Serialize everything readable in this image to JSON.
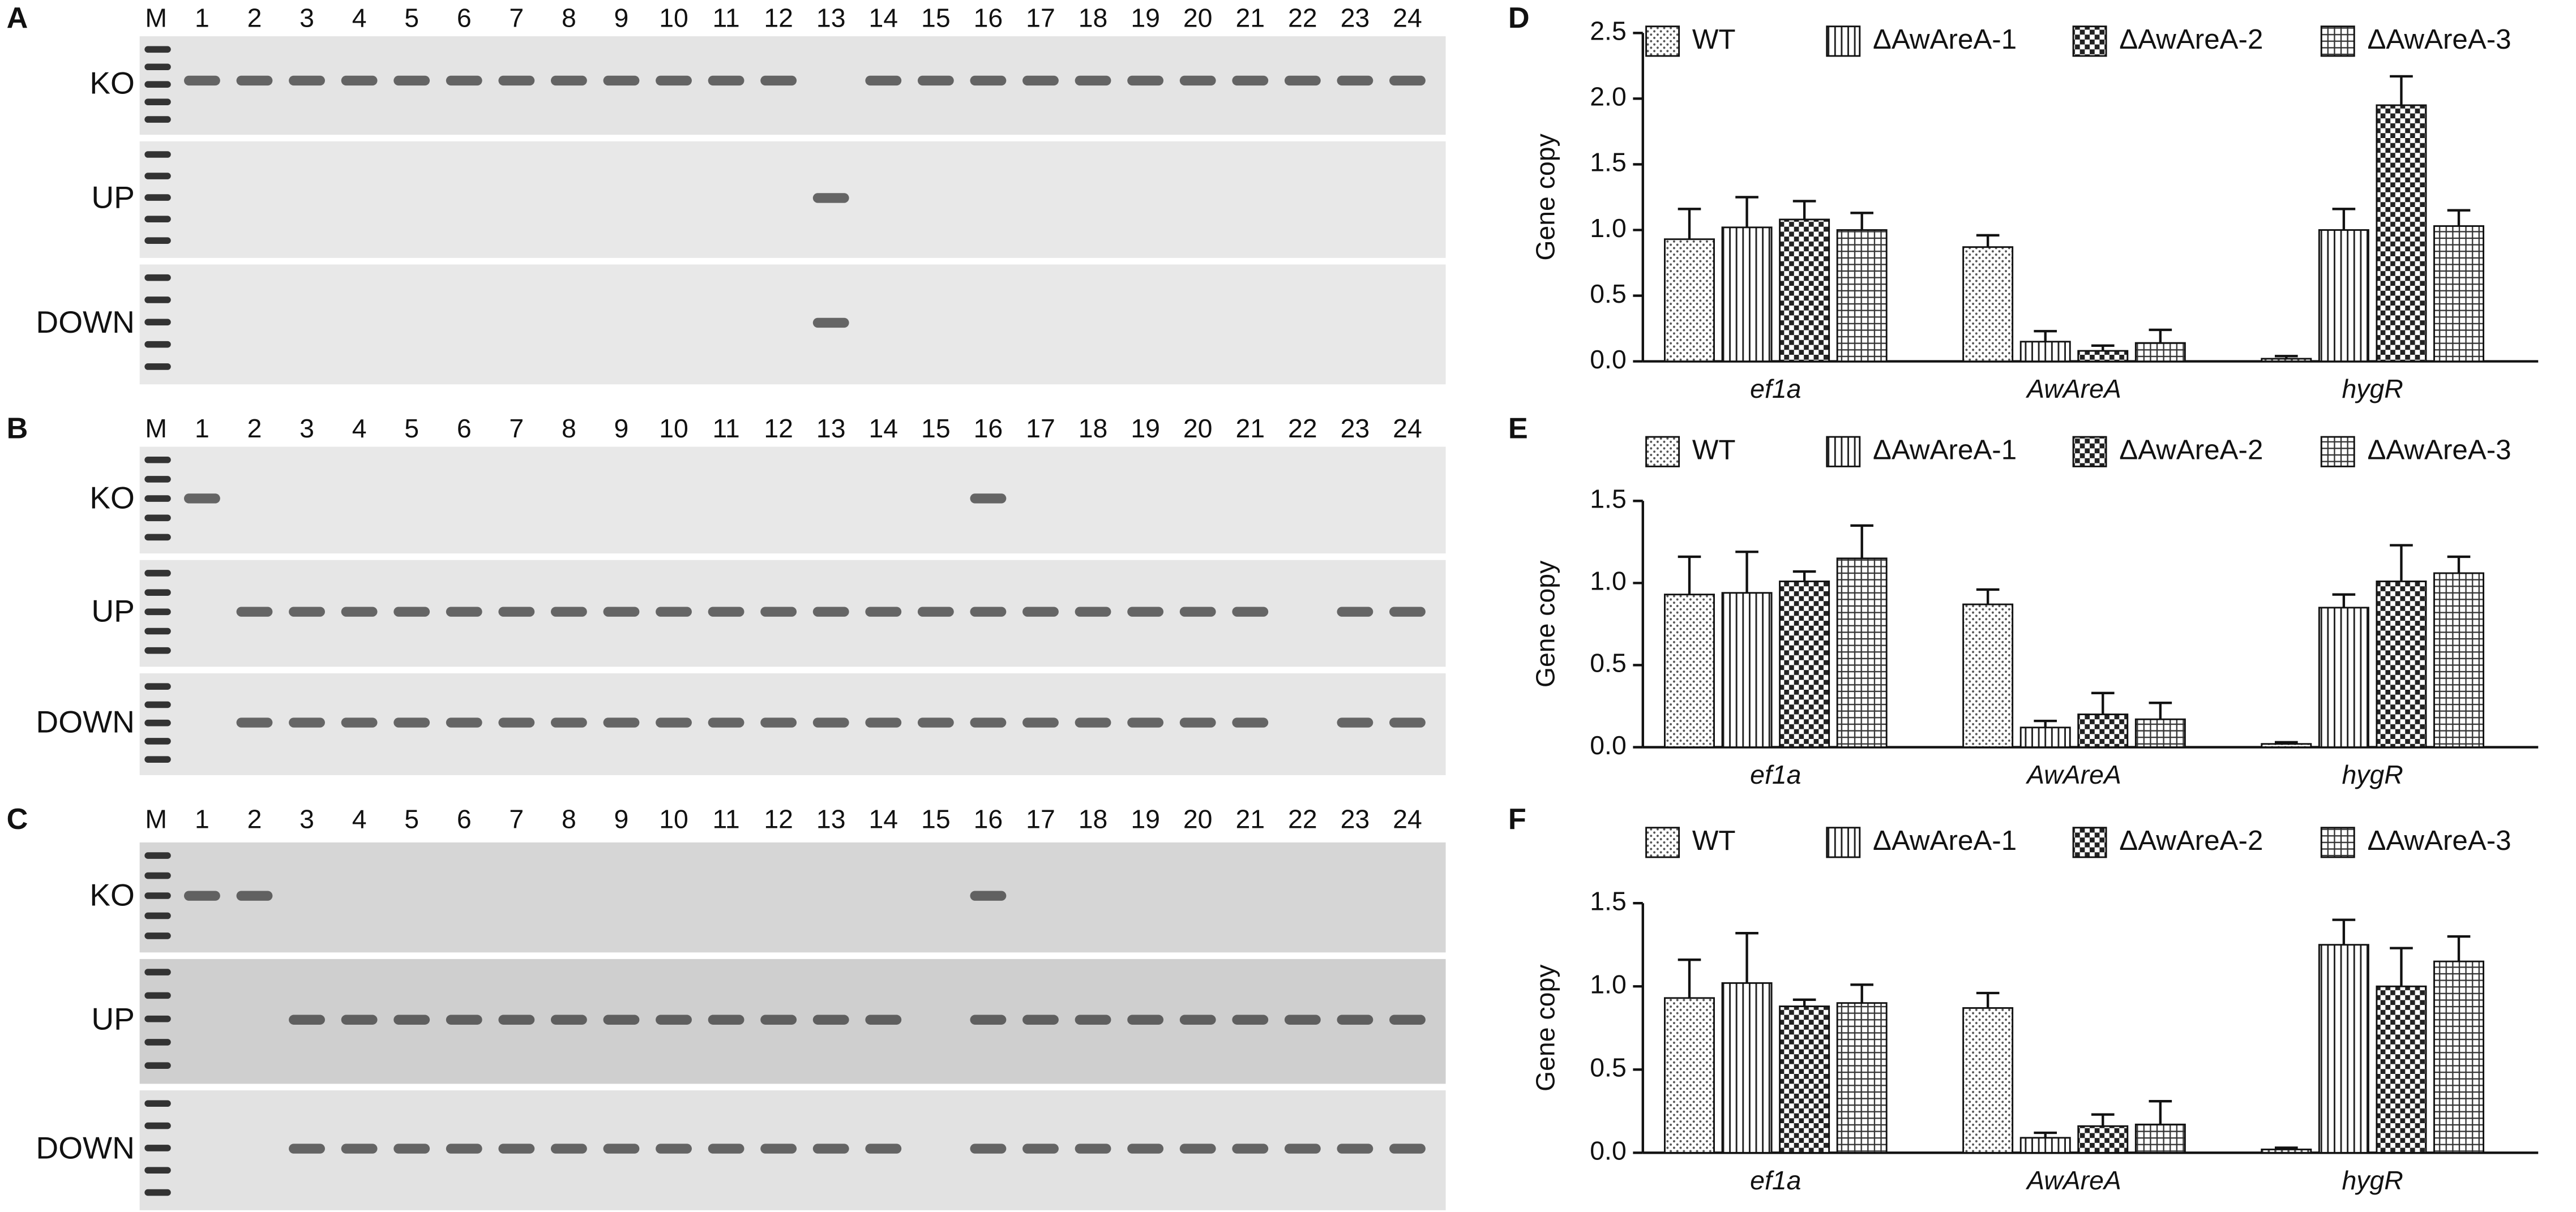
{
  "gels": [
    {
      "panel": "A",
      "lanes": [
        "M",
        "1",
        "2",
        "3",
        "4",
        "5",
        "6",
        "7",
        "8",
        "9",
        "10",
        "11",
        "12",
        "13",
        "14",
        "15",
        "16",
        "17",
        "18",
        "19",
        "20",
        "21",
        "22",
        "23",
        "24"
      ],
      "rows": [
        "KO",
        "UP",
        "DOWN"
      ]
    },
    {
      "panel": "B",
      "lanes": [
        "M",
        "1",
        "2",
        "3",
        "4",
        "5",
        "6",
        "7",
        "8",
        "9",
        "10",
        "11",
        "12",
        "13",
        "14",
        "15",
        "16",
        "17",
        "18",
        "19",
        "20",
        "21",
        "22",
        "23",
        "24"
      ],
      "rows": [
        "KO",
        "UP",
        "DOWN"
      ]
    },
    {
      "panel": "C",
      "lanes": [
        "M",
        "1",
        "2",
        "3",
        "4",
        "5",
        "6",
        "7",
        "8",
        "9",
        "10",
        "11",
        "12",
        "13",
        "14",
        "15",
        "16",
        "17",
        "18",
        "19",
        "20",
        "21",
        "22",
        "23",
        "24"
      ],
      "rows": [
        "KO",
        "UP",
        "DOWN"
      ]
    }
  ],
  "chart_data": [
    {
      "type": "bar",
      "panel": "D",
      "y_label": "Gene copy",
      "categories": [
        "ef1a",
        "AwAreA",
        "hygR"
      ],
      "ylim": [
        0,
        2.5
      ],
      "yticks": [
        {
          "value": 0,
          "label": "0.0"
        },
        0.5,
        {
          "value": 1,
          "label": "1.0"
        },
        1.5,
        {
          "value": 2,
          "label": "2.0"
        },
        2.5
      ],
      "series": [
        {
          "name": "WT",
          "values": [
            0.93,
            0.87,
            0.02
          ],
          "errors": [
            0.23,
            0.09,
            0.02
          ]
        },
        {
          "name": "ΔAwAreA-1",
          "values": [
            1.02,
            0.15,
            1.0
          ],
          "errors": [
            0.23,
            0.08,
            0.16
          ]
        },
        {
          "name": "ΔAwAreA-2",
          "values": [
            1.08,
            0.08,
            1.95
          ],
          "errors": [
            0.14,
            0.04,
            0.22
          ]
        },
        {
          "name": "ΔAwAreA-3",
          "values": [
            1.0,
            0.14,
            1.03
          ],
          "errors": [
            0.13,
            0.1,
            0.12
          ]
        }
      ]
    },
    {
      "type": "bar",
      "panel": "E",
      "y_label": "Gene copy",
      "categories": [
        "ef1a",
        "AwAreA",
        "hygR"
      ],
      "ylim": [
        0,
        1.5
      ],
      "yticks": [
        {
          "value": 0,
          "label": "0.0"
        },
        0.5,
        {
          "value": 1,
          "label": "1.0"
        },
        1.5
      ],
      "series": [
        {
          "name": "WT",
          "values": [
            0.93,
            0.87,
            0.02
          ],
          "errors": [
            0.23,
            0.09,
            0.01
          ]
        },
        {
          "name": "ΔAwAreA-1",
          "values": [
            0.94,
            0.12,
            0.85
          ],
          "errors": [
            0.25,
            0.04,
            0.08
          ]
        },
        {
          "name": "ΔAwAreA-2",
          "values": [
            1.01,
            0.2,
            1.01
          ],
          "errors": [
            0.06,
            0.13,
            0.22
          ]
        },
        {
          "name": "ΔAwAreA-3",
          "values": [
            1.15,
            0.17,
            1.06
          ],
          "errors": [
            0.2,
            0.1,
            0.1
          ]
        }
      ]
    },
    {
      "type": "bar",
      "panel": "F",
      "y_label": "Gene copy",
      "categories": [
        "ef1a",
        "AwAreA",
        "hygR"
      ],
      "ylim": [
        0,
        1.5
      ],
      "yticks": [
        {
          "value": 0,
          "label": "0.0"
        },
        0.5,
        {
          "value": 1,
          "label": "1.0"
        },
        1.5
      ],
      "series": [
        {
          "name": "WT",
          "values": [
            0.93,
            0.87,
            0.02
          ],
          "errors": [
            0.23,
            0.09,
            0.01
          ]
        },
        {
          "name": "ΔAwAreA-1",
          "values": [
            1.02,
            0.09,
            1.25
          ],
          "errors": [
            0.3,
            0.03,
            0.15
          ]
        },
        {
          "name": "ΔAwAreA-2",
          "values": [
            0.88,
            0.16,
            1.0
          ],
          "errors": [
            0.04,
            0.07,
            0.23
          ]
        },
        {
          "name": "ΔAwAreA-3",
          "values": [
            0.9,
            0.17,
            1.15
          ],
          "errors": [
            0.11,
            0.14,
            0.15
          ]
        }
      ]
    }
  ]
}
